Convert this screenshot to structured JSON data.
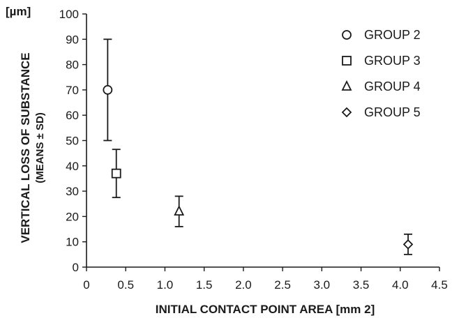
{
  "chart_data": {
    "type": "scatter",
    "xlabel": "INITIAL CONTACT POINT AREA [mm 2]",
    "ylabel": "VERTICAL LOSS OF SUBSTANCE",
    "ylabel_sub": "(MEANS ± SD)",
    "y_unit": "[µm]",
    "xlim": [
      0,
      4.5
    ],
    "ylim": [
      0,
      100
    ],
    "x_ticks": [
      "0",
      "0.5",
      "1.0",
      "1.5",
      "2.0",
      "2.5",
      "3.0",
      "3.5",
      "4.0",
      "4.5"
    ],
    "y_ticks": [
      "0",
      "10",
      "20",
      "30",
      "40",
      "50",
      "60",
      "70",
      "80",
      "90",
      "100"
    ],
    "grid": false,
    "legend_position": "top-right",
    "series": [
      {
        "name": "GROUP 2",
        "marker": "circle",
        "x": 0.27,
        "y": 70,
        "sd": 20
      },
      {
        "name": "GROUP 3",
        "marker": "square",
        "x": 0.38,
        "y": 37,
        "sd": 9.5
      },
      {
        "name": "GROUP 4",
        "marker": "triangle",
        "x": 1.18,
        "y": 22,
        "sd": 6
      },
      {
        "name": "GROUP 5",
        "marker": "diamond",
        "x": 4.1,
        "y": 9,
        "sd": 4
      }
    ]
  }
}
